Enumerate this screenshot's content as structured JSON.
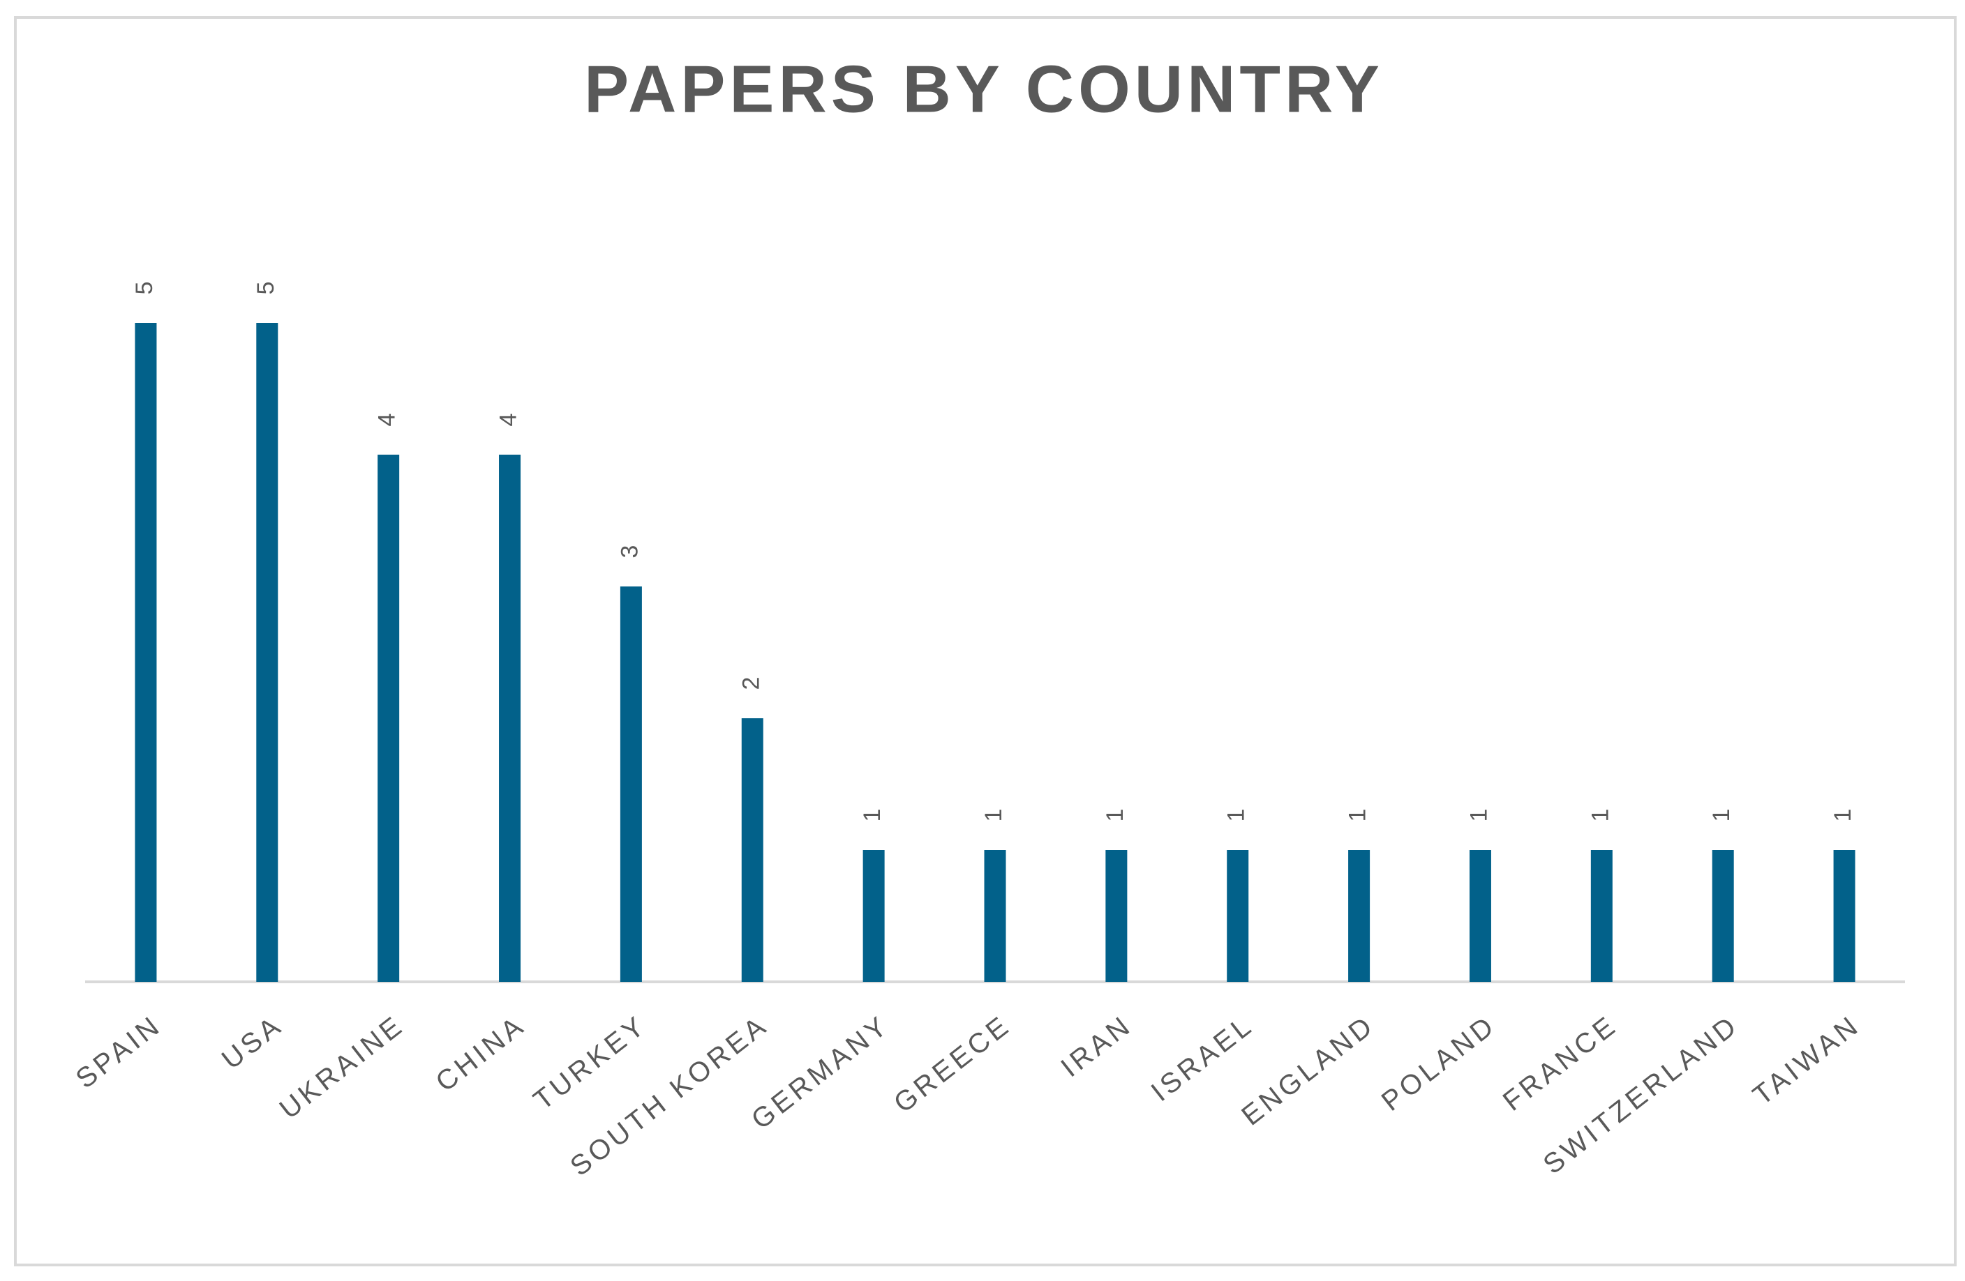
{
  "chart_data": {
    "type": "bar",
    "title": "PAPERS BY COUNTRY",
    "categories": [
      "SPAIN",
      "USA",
      "UKRAINE",
      "CHINA",
      "TURKEY",
      "SOUTH KOREA",
      "GERMANY",
      "GREECE",
      "IRAN",
      "ISRAEL",
      "ENGLAND",
      "POLAND",
      "FRANCE",
      "SWITZERLAND",
      "TAIWAN"
    ],
    "values": [
      5,
      5,
      4,
      4,
      3,
      2,
      1,
      1,
      1,
      1,
      1,
      1,
      1,
      1,
      1
    ],
    "color": "#02618a"
  }
}
